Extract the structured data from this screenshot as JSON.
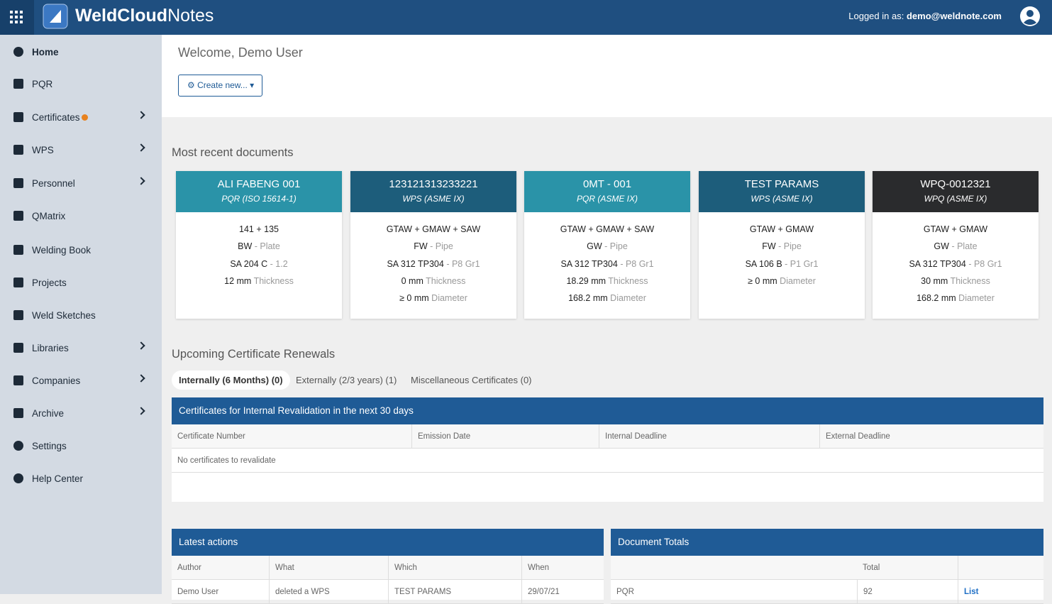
{
  "header": {
    "brand_bold": "WeldCloud",
    "brand_light": "Notes",
    "logged_in_label": "Logged in as:",
    "user_email": "demo@weldnote.com"
  },
  "sidebar": {
    "items": [
      "Home",
      "PQR",
      "Certificates",
      "WPS",
      "Personnel",
      "QMatrix",
      "Welding Book",
      "Projects",
      "Weld Sketches",
      "Libraries",
      "Companies",
      "Archive",
      "Settings",
      "Help Center"
    ]
  },
  "welcome": {
    "title": "Welcome, Demo User",
    "create_button": "Create new..."
  },
  "recent": {
    "title": "Most recent documents",
    "cards": [
      {
        "title": "ALI FABENG 001",
        "subtitle": "PQR (ISO 15614-1)",
        "color": "#2a93a8",
        "lines": [
          [
            "141 + 135"
          ],
          [
            "BW",
            "- Plate"
          ],
          [
            "SA 204 C",
            "- 1.2"
          ],
          [
            "12 mm",
            "Thickness"
          ]
        ]
      },
      {
        "title": "123121313233221",
        "subtitle": "WPS (ASME IX)",
        "color": "#1d5d7b",
        "lines": [
          [
            "GTAW + GMAW + SAW"
          ],
          [
            "FW",
            "- Pipe"
          ],
          [
            "SA 312 TP304",
            "- P8 Gr1"
          ],
          [
            "0 mm",
            "Thickness"
          ],
          [
            "≥ 0 mm",
            "Diameter"
          ]
        ]
      },
      {
        "title": "0MT - 001",
        "subtitle": "PQR (ASME IX)",
        "color": "#2a93a8",
        "lines": [
          [
            "GTAW + GMAW + SAW"
          ],
          [
            "GW",
            "- Pipe"
          ],
          [
            "SA 312 TP304",
            "- P8 Gr1"
          ],
          [
            "18.29 mm",
            "Thickness"
          ],
          [
            "168.2 mm",
            "Diameter"
          ]
        ]
      },
      {
        "title": "TEST PARAMS",
        "subtitle": "WPS (ASME IX)",
        "color": "#1d5d7b",
        "lines": [
          [
            "GTAW + GMAW"
          ],
          [
            "FW",
            "- Pipe"
          ],
          [
            "SA 106 B",
            "- P1 Gr1"
          ],
          [
            "≥ 0 mm",
            "Diameter"
          ]
        ]
      },
      {
        "title": "WPQ-0012321",
        "subtitle": "WPQ (ASME IX)",
        "color": "#2a2b2d",
        "lines": [
          [
            "GTAW + GMAW"
          ],
          [
            "GW",
            "- Plate"
          ],
          [
            "SA 312 TP304",
            "- P8 Gr1"
          ],
          [
            "30 mm",
            "Thickness"
          ],
          [
            "168.2 mm",
            "Diameter"
          ]
        ]
      }
    ]
  },
  "renewals": {
    "title": "Upcoming Certificate Renewals",
    "tabs": [
      "Internally (6 Months) (0)",
      "Externally (2/3 years) (1)",
      "Miscellaneous Certificates (0)"
    ],
    "panel_title": "Certificates for Internal Revalidation in the next 30 days",
    "columns": [
      "Certificate Number",
      "Emission Date",
      "Internal Deadline",
      "External Deadline"
    ],
    "empty_message": "No certificates to revalidate"
  },
  "latest_actions": {
    "title": "Latest actions",
    "columns": [
      "Author",
      "What",
      "Which",
      "When"
    ],
    "rows": [
      [
        "Demo User",
        "deleted a WPS",
        "TEST PARAMS",
        "29/07/21"
      ]
    ]
  },
  "document_totals": {
    "title": "Document Totals",
    "columns": [
      "Total"
    ],
    "rows": [
      [
        "PQR",
        "92",
        "List"
      ]
    ]
  }
}
